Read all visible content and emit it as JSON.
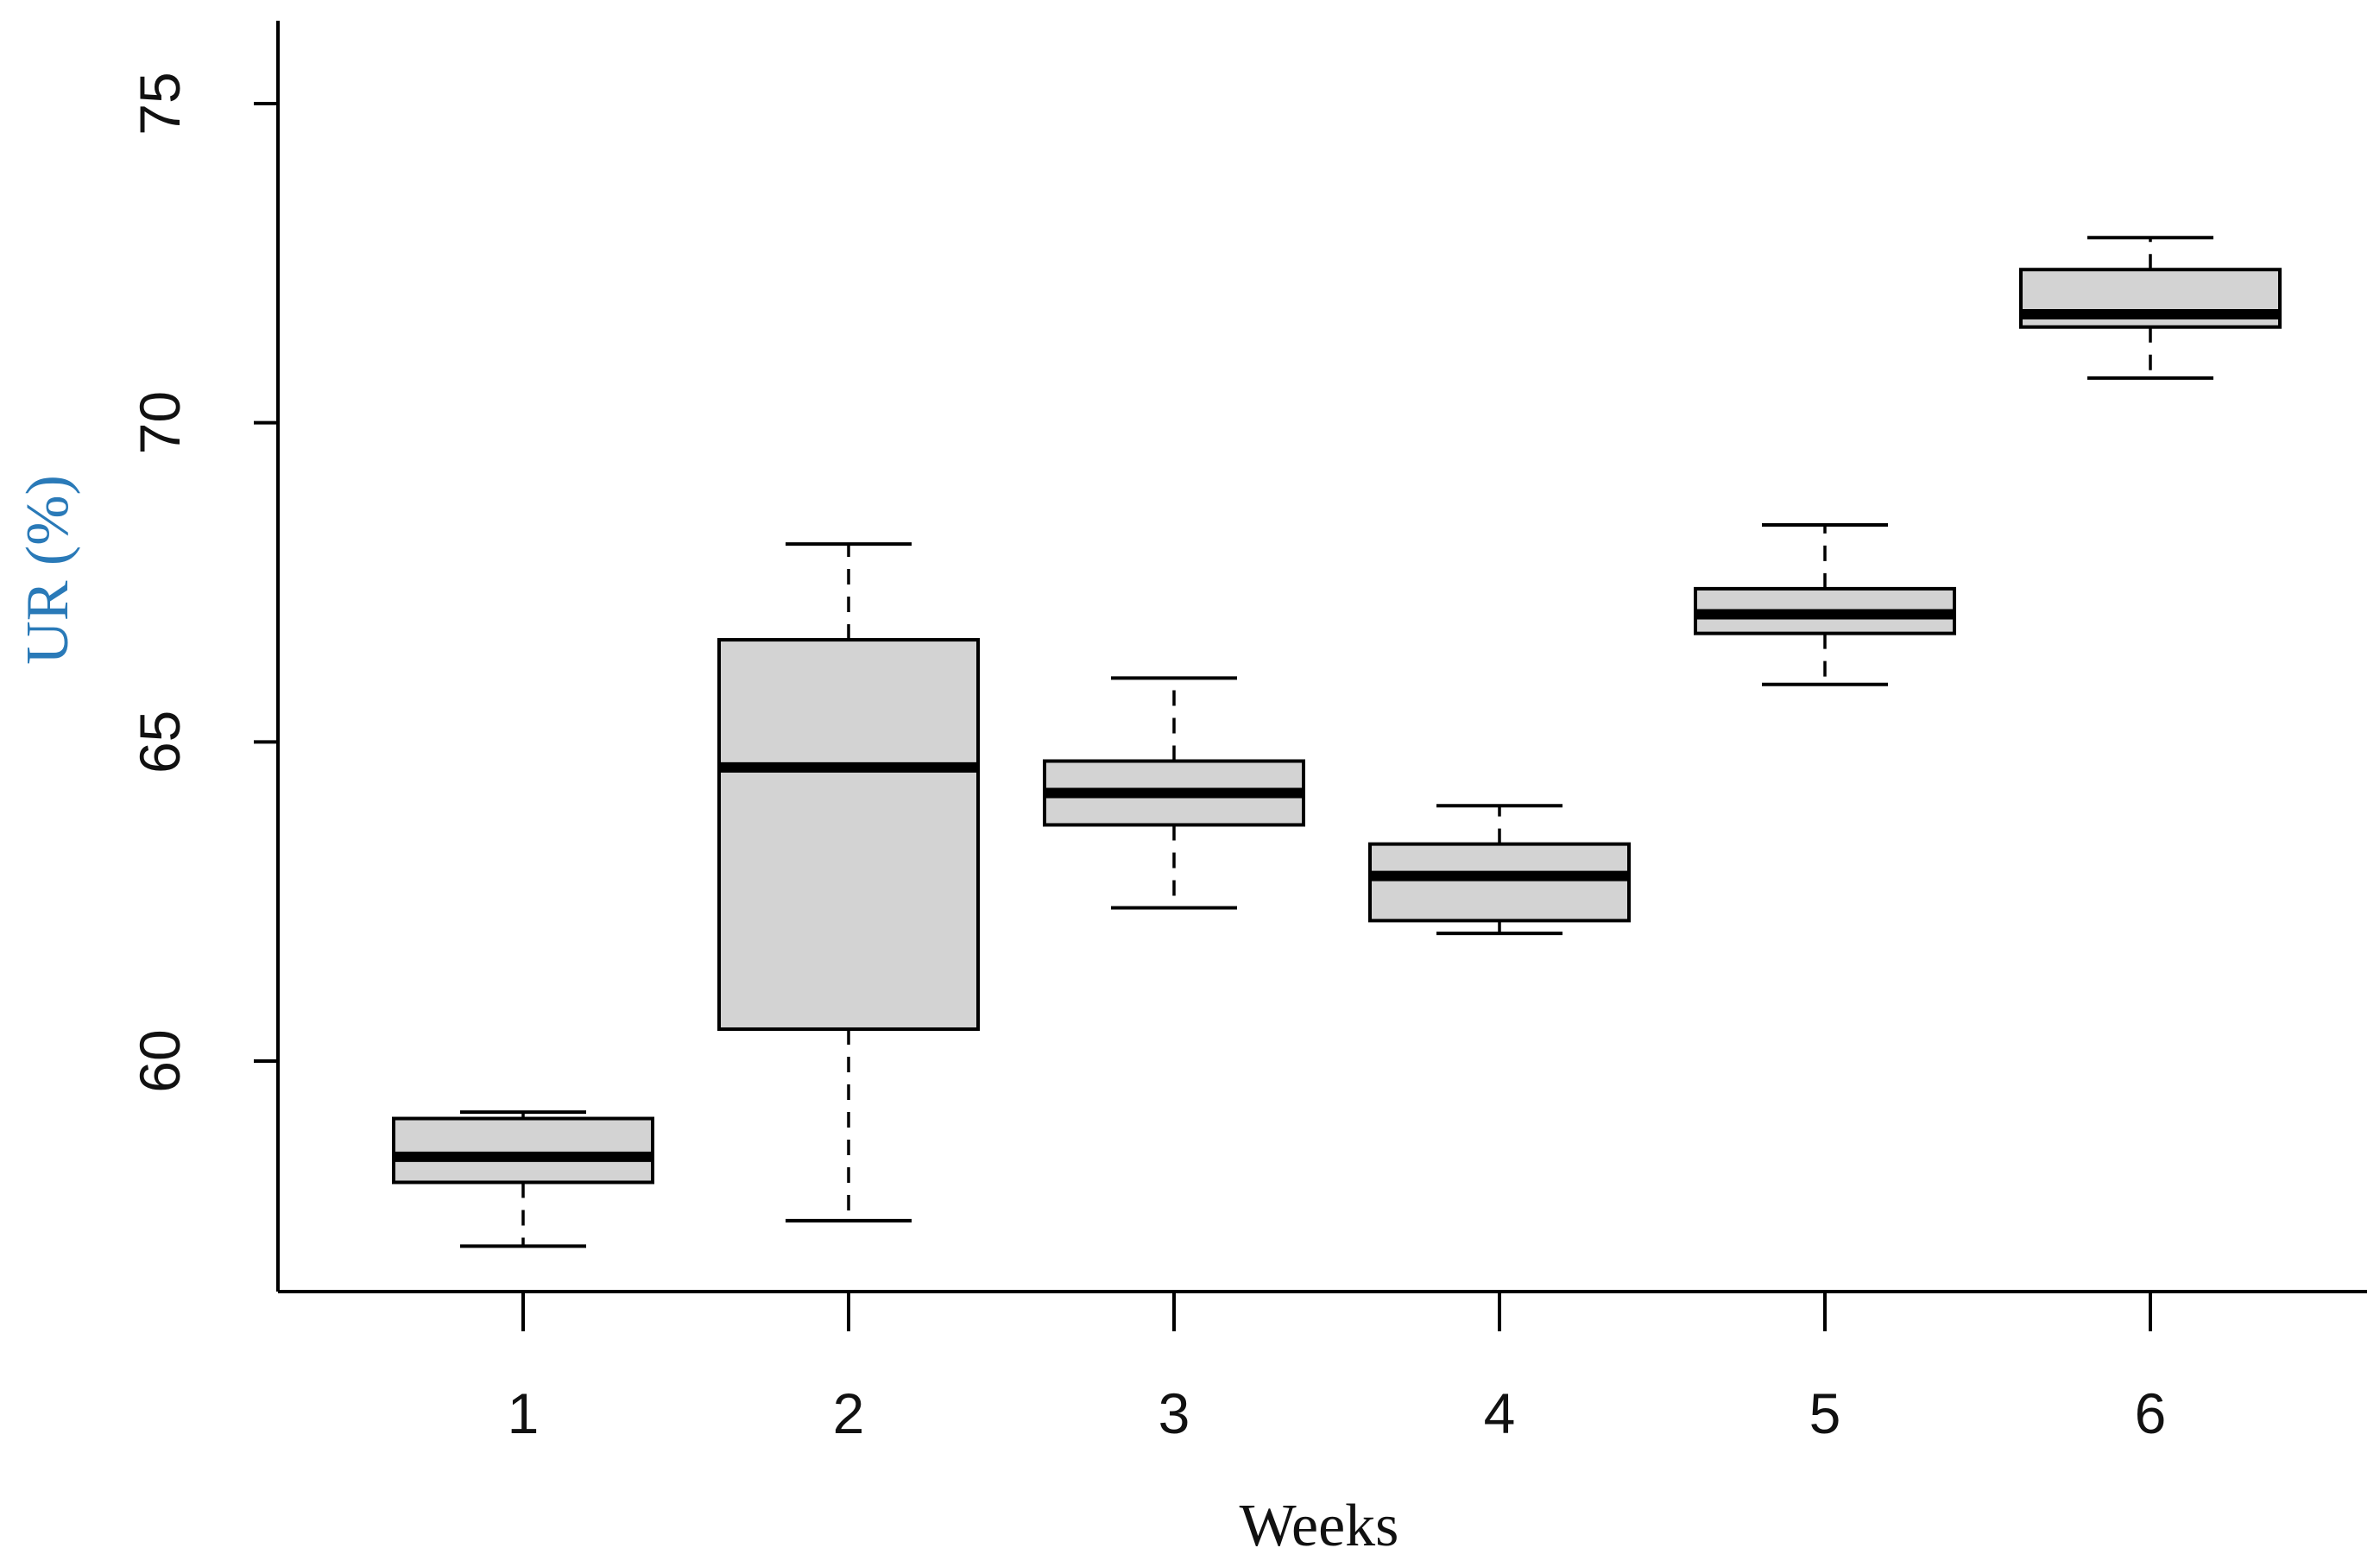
{
  "chart_data": {
    "type": "boxplot",
    "title": "",
    "xlabel": "Weeks",
    "ylabel": "UR (%)",
    "ylabel_color": "#2a7ab8",
    "xlabel_color": "#111111",
    "box_fill": "#d3d3d3",
    "ylim": [
      56.4,
      76.3
    ],
    "yticks": [
      60,
      65,
      70,
      75
    ],
    "ytick_labels": [
      "60",
      "65",
      "70",
      "75"
    ],
    "categories": [
      "1",
      "2",
      "3",
      "4",
      "5",
      "6"
    ],
    "boxes": [
      {
        "category": "1",
        "whisker_low": 57.1,
        "q1": 58.1,
        "median": 58.5,
        "q3": 59.1,
        "whisker_high": 59.2
      },
      {
        "category": "2",
        "whisker_low": 57.5,
        "q1": 60.5,
        "median": 64.6,
        "q3": 66.6,
        "whisker_high": 68.1
      },
      {
        "category": "3",
        "whisker_low": 62.4,
        "q1": 63.7,
        "median": 64.2,
        "q3": 64.7,
        "whisker_high": 66.0
      },
      {
        "category": "4",
        "whisker_low": 62.0,
        "q1": 62.2,
        "median": 62.9,
        "q3": 63.4,
        "whisker_high": 64.0
      },
      {
        "category": "5",
        "whisker_low": 65.9,
        "q1": 66.7,
        "median": 67.0,
        "q3": 67.4,
        "whisker_high": 68.4
      },
      {
        "category": "6",
        "whisker_low": 70.7,
        "q1": 71.5,
        "median": 71.7,
        "q3": 72.4,
        "whisker_high": 72.9
      }
    ]
  }
}
